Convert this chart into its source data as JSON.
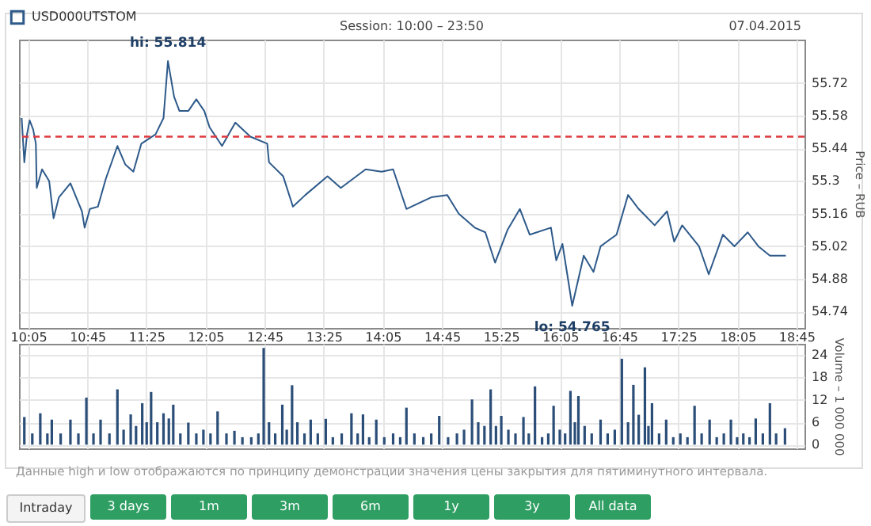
{
  "chart_data": [
    {
      "type": "line",
      "subtitle": "Session: 10:00 – 23:50",
      "ylabel": "Price – RUB",
      "legend": "top left",
      "grid": true,
      "xlim": [
        9.98,
        18.84
      ],
      "ylim": [
        54.67,
        55.906
      ],
      "xticks": [
        {
          "value": 10.0833,
          "label": "10:05"
        },
        {
          "value": 10.75,
          "label": "10:45"
        },
        {
          "value": 11.4167,
          "label": "11:25"
        },
        {
          "value": 12.0833,
          "label": "12:05"
        },
        {
          "value": 12.75,
          "label": "12:45"
        },
        {
          "value": 13.4167,
          "label": "13:25"
        },
        {
          "value": 14.0833,
          "label": "14:05"
        },
        {
          "value": 14.75,
          "label": "14:45"
        },
        {
          "value": 15.4167,
          "label": "15:25"
        },
        {
          "value": 16.0833,
          "label": "16:05"
        },
        {
          "value": 16.75,
          "label": "16:45"
        },
        {
          "value": 17.4167,
          "label": "17:25"
        },
        {
          "value": 18.0833,
          "label": "18:05"
        },
        {
          "value": 18.75,
          "label": "18:45"
        }
      ],
      "yticks": [
        54.74,
        54.88,
        55.02,
        55.16,
        55.3,
        55.44,
        55.58,
        55.72
      ],
      "ref_lines": [
        {
          "axis": "y",
          "value": 55.49,
          "color": "#e0393e",
          "line_style": "dashed"
        }
      ],
      "series": [
        {
          "name": "USD000UTSTOM",
          "color": "#2e5a8a",
          "x": [
            10.01,
            10.04,
            10.07,
            10.1,
            10.14,
            10.17,
            10.18,
            10.24,
            10.32,
            10.37,
            10.43,
            10.56,
            10.69,
            10.72,
            10.78,
            10.87,
            10.96,
            11.09,
            11.18,
            11.27,
            11.36,
            11.52,
            11.61,
            11.66,
            11.73,
            11.79,
            11.89,
            11.98,
            12.07,
            12.13,
            12.27,
            12.42,
            12.59,
            12.78,
            12.8,
            12.96,
            13.07,
            13.21,
            13.46,
            13.61,
            13.89,
            14.07,
            14.2,
            14.35,
            14.63,
            14.81,
            14.94,
            15.12,
            15.24,
            15.35,
            15.49,
            15.63,
            15.74,
            15.98,
            16.04,
            16.11,
            16.22,
            16.35,
            16.46,
            16.54,
            16.72,
            16.85,
            16.97,
            17.15,
            17.29,
            17.37,
            17.46,
            17.65,
            17.76,
            17.92,
            18.05,
            18.2,
            18.32,
            18.45,
            18.63
          ],
          "values": [
            55.57,
            55.38,
            55.5,
            55.56,
            55.52,
            55.46,
            55.27,
            55.35,
            55.3,
            55.14,
            55.23,
            55.29,
            55.17,
            55.1,
            55.18,
            55.19,
            55.31,
            55.45,
            55.37,
            55.34,
            55.46,
            55.5,
            55.57,
            55.814,
            55.66,
            55.6,
            55.6,
            55.65,
            55.6,
            55.53,
            55.45,
            55.55,
            55.49,
            55.46,
            55.38,
            55.32,
            55.19,
            55.24,
            55.32,
            55.27,
            55.35,
            55.34,
            55.35,
            55.18,
            55.23,
            55.24,
            55.16,
            55.1,
            55.08,
            54.95,
            55.09,
            55.18,
            55.07,
            55.1,
            54.96,
            55.03,
            54.765,
            54.98,
            54.91,
            55.02,
            55.07,
            55.24,
            55.18,
            55.11,
            55.17,
            55.04,
            55.11,
            55.02,
            54.9,
            55.07,
            55.02,
            55.08,
            55.02,
            54.98,
            54.98
          ]
        }
      ],
      "annotations": [
        "07.04.2015",
        "Данные high и low отображаются по принципу демонстрации значения цены закрытия для пятиминутного интервала.",
        {
          "text": "hi: 55.814",
          "x": 11.66,
          "y": 55.814
        },
        {
          "text": "lo: 54.765",
          "x": 16.22,
          "y": 54.765
        },
        "Intraday",
        "3 days",
        "1m",
        "3m",
        "6m",
        "1y",
        "3y",
        "All data"
      ]
    },
    {
      "type": "bar",
      "ylabel": "Volume – 1 000 000",
      "grid": true,
      "tick_labels": "y",
      "xlim": [
        9.98,
        18.84
      ],
      "ylim": [
        -1,
        27
      ],
      "xticks": [
        {
          "value": 10.0833,
          "label": null
        },
        {
          "value": 10.75,
          "label": null
        },
        {
          "value": 11.4167,
          "label": null
        },
        {
          "value": 12.0833,
          "label": null
        },
        {
          "value": 12.75,
          "label": null
        },
        {
          "value": 13.4167,
          "label": null
        },
        {
          "value": 14.0833,
          "label": null
        },
        {
          "value": 14.75,
          "label": null
        },
        {
          "value": 15.4167,
          "label": null
        },
        {
          "value": 16.0833,
          "label": null
        },
        {
          "value": 16.75,
          "label": null
        },
        {
          "value": 17.4167,
          "label": null
        },
        {
          "value": 18.0833,
          "label": null
        },
        {
          "value": 18.75,
          "label": null
        }
      ],
      "yticks": [
        0,
        6,
        12,
        18,
        24
      ],
      "series": [
        {
          "color": "#2b4e78",
          "x": [
            10.04,
            10.13,
            10.22,
            10.3,
            10.35,
            10.45,
            10.56,
            10.65,
            10.74,
            10.82,
            10.9,
            11.0,
            11.09,
            11.16,
            11.24,
            11.3,
            11.37,
            11.42,
            11.47,
            11.54,
            11.61,
            11.67,
            11.72,
            11.8,
            11.89,
            11.98,
            12.06,
            12.14,
            12.22,
            12.32,
            12.41,
            12.5,
            12.6,
            12.68,
            12.74,
            12.8,
            12.87,
            12.95,
            13.0,
            13.06,
            13.12,
            13.2,
            13.27,
            13.35,
            13.44,
            13.52,
            13.62,
            13.73,
            13.8,
            13.86,
            13.93,
            14.01,
            14.1,
            14.2,
            14.28,
            14.35,
            14.44,
            14.54,
            14.63,
            14.72,
            14.82,
            14.92,
            15.0,
            15.09,
            15.16,
            15.23,
            15.3,
            15.36,
            15.42,
            15.5,
            15.58,
            15.67,
            15.73,
            15.8,
            15.88,
            15.95,
            16.01,
            16.08,
            16.14,
            16.2,
            16.25,
            16.29,
            16.36,
            16.44,
            16.54,
            16.62,
            16.7,
            16.78,
            16.85,
            16.91,
            16.97,
            17.04,
            17.08,
            17.12,
            17.2,
            17.28,
            17.36,
            17.44,
            17.52,
            17.6,
            17.68,
            17.77,
            17.85,
            17.93,
            18.01,
            18.08,
            18.15,
            18.22,
            18.29,
            18.37,
            18.45,
            18.52,
            18.62
          ],
          "values": [
            7.4,
            3,
            8.4,
            3,
            6.7,
            3,
            6.7,
            3,
            12.6,
            3,
            6.7,
            3,
            14.8,
            4,
            8.1,
            5,
            11.1,
            6,
            14.1,
            6,
            8.4,
            7,
            10.7,
            3,
            5.9,
            3,
            4,
            3,
            8.9,
            3,
            3.7,
            2,
            2,
            3,
            25.9,
            6,
            3,
            10.7,
            4,
            15.9,
            6,
            3,
            6.7,
            3,
            6.9,
            2,
            3,
            8.4,
            3,
            8.1,
            2,
            6.7,
            2,
            3,
            2,
            9.9,
            3,
            2,
            3,
            7.7,
            2,
            3,
            4,
            12.1,
            6,
            5,
            14.8,
            5,
            7.7,
            4,
            3,
            7.4,
            3,
            15.6,
            2,
            3,
            10.4,
            4,
            3,
            14.4,
            6,
            13.0,
            5,
            3,
            6.7,
            3,
            4,
            23.0,
            6,
            16.0,
            8,
            20.7,
            5,
            11.1,
            3,
            6.7,
            2,
            3,
            2,
            10.4,
            3,
            6.7,
            2,
            3,
            6.7,
            2,
            3,
            2,
            7.0,
            3,
            11.1,
            3,
            4.4
          ]
        }
      ]
    }
  ]
}
